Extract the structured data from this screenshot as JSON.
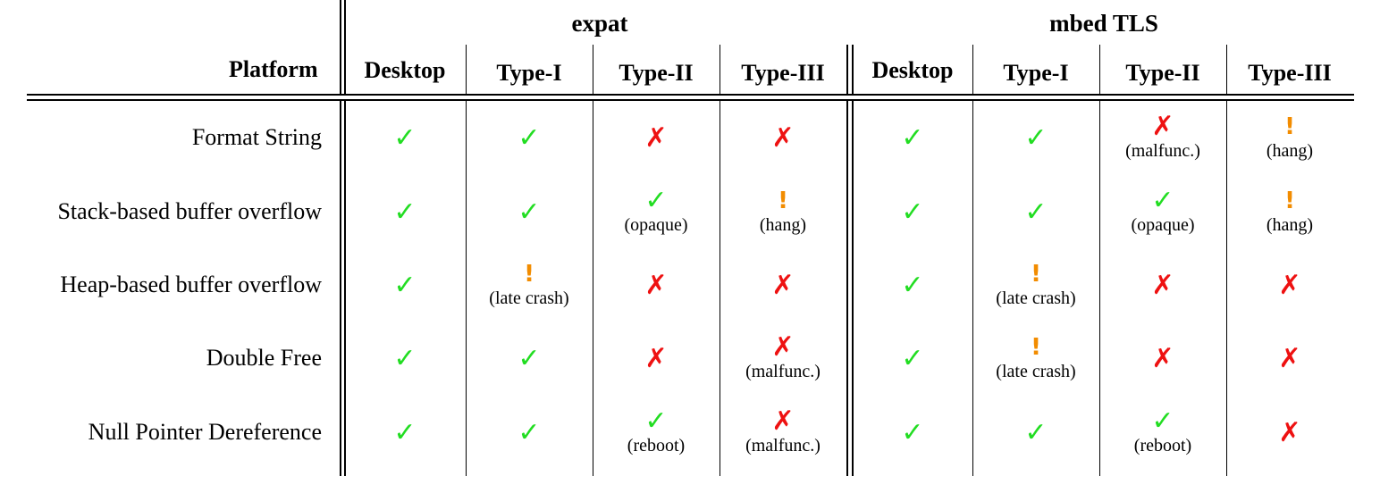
{
  "table": {
    "corner_label": "Platform",
    "groups": [
      {
        "name": "expat",
        "columns": [
          "Desktop",
          "Type-I",
          "Type-II",
          "Type-III"
        ]
      },
      {
        "name": "mbed TLS",
        "columns": [
          "Desktop",
          "Type-I",
          "Type-II",
          "Type-III"
        ]
      }
    ],
    "symbols": {
      "check": "✓",
      "cross": "✗",
      "warn": "!"
    },
    "colors": {
      "check": "#22dd22",
      "cross": "#ee1111",
      "warn": "#f28c00"
    },
    "rows": [
      {
        "label": "Format String",
        "cells": [
          {
            "status": "check",
            "note": ""
          },
          {
            "status": "check",
            "note": ""
          },
          {
            "status": "cross",
            "note": ""
          },
          {
            "status": "cross",
            "note": ""
          },
          {
            "status": "check",
            "note": ""
          },
          {
            "status": "check",
            "note": ""
          },
          {
            "status": "cross",
            "note": "(malfunc.)"
          },
          {
            "status": "warn",
            "note": "(hang)"
          }
        ]
      },
      {
        "label": "Stack-based buffer overflow",
        "cells": [
          {
            "status": "check",
            "note": ""
          },
          {
            "status": "check",
            "note": ""
          },
          {
            "status": "check",
            "note": "(opaque)"
          },
          {
            "status": "warn",
            "note": "(hang)"
          },
          {
            "status": "check",
            "note": ""
          },
          {
            "status": "check",
            "note": ""
          },
          {
            "status": "check",
            "note": "(opaque)"
          },
          {
            "status": "warn",
            "note": "(hang)"
          }
        ]
      },
      {
        "label": "Heap-based buffer overflow",
        "cells": [
          {
            "status": "check",
            "note": ""
          },
          {
            "status": "warn",
            "note": "(late crash)"
          },
          {
            "status": "cross",
            "note": ""
          },
          {
            "status": "cross",
            "note": ""
          },
          {
            "status": "check",
            "note": ""
          },
          {
            "status": "warn",
            "note": "(late crash)"
          },
          {
            "status": "cross",
            "note": ""
          },
          {
            "status": "cross",
            "note": ""
          }
        ]
      },
      {
        "label": "Double Free",
        "cells": [
          {
            "status": "check",
            "note": ""
          },
          {
            "status": "check",
            "note": ""
          },
          {
            "status": "cross",
            "note": ""
          },
          {
            "status": "cross",
            "note": "(malfunc.)"
          },
          {
            "status": "check",
            "note": ""
          },
          {
            "status": "warn",
            "note": "(late crash)"
          },
          {
            "status": "cross",
            "note": ""
          },
          {
            "status": "cross",
            "note": ""
          }
        ]
      },
      {
        "label": "Null Pointer Dereference",
        "cells": [
          {
            "status": "check",
            "note": ""
          },
          {
            "status": "check",
            "note": ""
          },
          {
            "status": "check",
            "note": "(reboot)"
          },
          {
            "status": "cross",
            "note": "(malfunc.)"
          },
          {
            "status": "check",
            "note": ""
          },
          {
            "status": "check",
            "note": ""
          },
          {
            "status": "check",
            "note": "(reboot)"
          },
          {
            "status": "cross",
            "note": ""
          }
        ]
      }
    ]
  }
}
